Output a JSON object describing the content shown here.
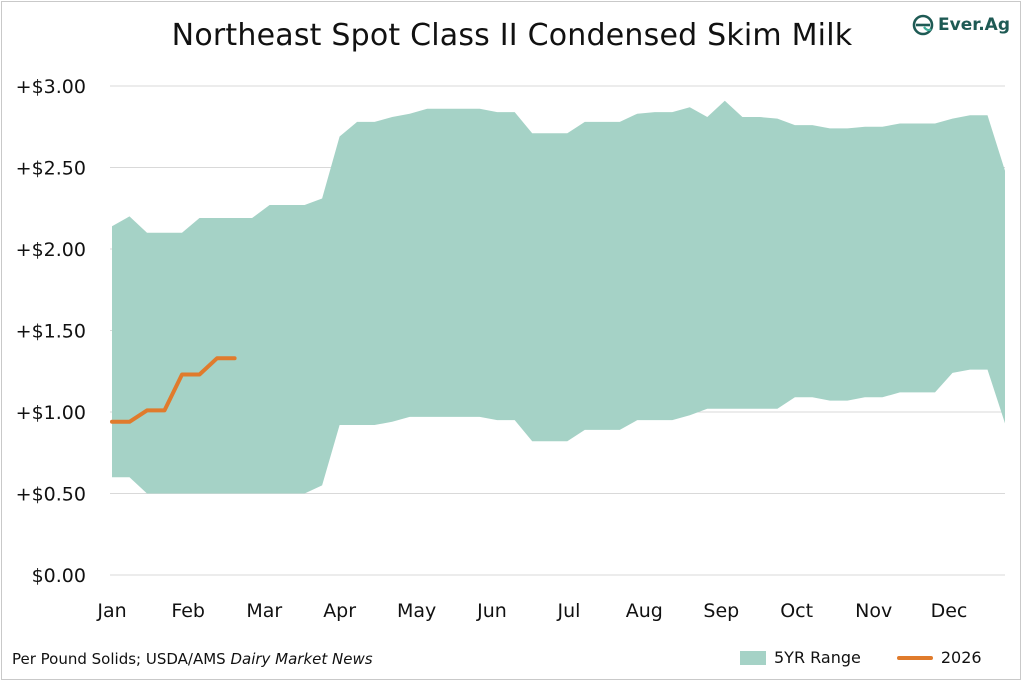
{
  "title": "Northeast Spot Class II Condensed Skim Milk",
  "logo_text": "Ever.Ag",
  "source_prefix": "Per Pound Solids; USDA/AMS ",
  "source_italic": "Dairy Market News",
  "legend": {
    "range_label": "5YR Range",
    "line_label": "2026"
  },
  "colors": {
    "range": "#a5d2c6",
    "line": "#e07b2c",
    "grid": "#d9d9d9",
    "logo": "#1e5a54"
  },
  "chart_data": {
    "type": "area",
    "title": "Northeast Spot Class II Condensed Skim Milk",
    "xlabel": "",
    "ylabel": "",
    "ylim": [
      0,
      3.0
    ],
    "yticks": [
      "$0.00",
      "+$0.50",
      "+$1.00",
      "+$1.50",
      "+$2.00",
      "+$2.50",
      "+$3.00"
    ],
    "ytick_values": [
      0,
      0.5,
      1.0,
      1.5,
      2.0,
      2.5,
      3.0
    ],
    "months": [
      "Jan",
      "Feb",
      "Mar",
      "Apr",
      "May",
      "Jun",
      "Jul",
      "Aug",
      "Sep",
      "Oct",
      "Nov",
      "Dec"
    ],
    "grid": "horizontal",
    "legend_position": "bottom-right",
    "series": [
      {
        "name": "5YR Range",
        "kind": "range",
        "x_week": [
          0,
          1,
          2,
          3,
          4,
          5,
          6,
          7,
          8,
          9,
          10,
          11,
          12,
          13,
          14,
          15,
          16,
          17,
          18,
          19,
          20,
          21,
          22,
          23,
          24,
          25,
          26,
          27,
          28,
          29,
          30,
          31,
          32,
          33,
          34,
          35,
          36,
          37,
          38,
          39,
          40,
          41,
          42,
          43,
          44,
          45,
          46,
          47,
          48,
          49,
          50,
          51
        ],
        "high": [
          2.14,
          2.2,
          2.1,
          2.1,
          2.1,
          2.19,
          2.19,
          2.19,
          2.19,
          2.27,
          2.27,
          2.27,
          2.31,
          2.69,
          2.78,
          2.78,
          2.81,
          2.83,
          2.86,
          2.86,
          2.86,
          2.86,
          2.84,
          2.84,
          2.71,
          2.71,
          2.71,
          2.78,
          2.78,
          2.78,
          2.83,
          2.84,
          2.84,
          2.87,
          2.81,
          2.91,
          2.81,
          2.81,
          2.8,
          2.76,
          2.76,
          2.74,
          2.74,
          2.75,
          2.75,
          2.77,
          2.77,
          2.77,
          2.8,
          2.82,
          2.82,
          2.48
        ],
        "low": [
          0.6,
          0.6,
          0.5,
          0.5,
          0.5,
          0.5,
          0.5,
          0.5,
          0.5,
          0.5,
          0.5,
          0.5,
          0.55,
          0.92,
          0.92,
          0.92,
          0.94,
          0.97,
          0.97,
          0.97,
          0.97,
          0.97,
          0.95,
          0.95,
          0.82,
          0.82,
          0.82,
          0.89,
          0.89,
          0.89,
          0.95,
          0.95,
          0.95,
          0.98,
          1.02,
          1.02,
          1.02,
          1.02,
          1.02,
          1.09,
          1.09,
          1.07,
          1.07,
          1.09,
          1.09,
          1.12,
          1.12,
          1.12,
          1.24,
          1.26,
          1.26,
          0.93
        ]
      },
      {
        "name": "2026",
        "kind": "line",
        "x_week": [
          0,
          1,
          2,
          3,
          4,
          5,
          6,
          7
        ],
        "values": [
          0.94,
          0.94,
          1.01,
          1.01,
          1.23,
          1.23,
          1.33,
          1.33
        ]
      }
    ]
  }
}
